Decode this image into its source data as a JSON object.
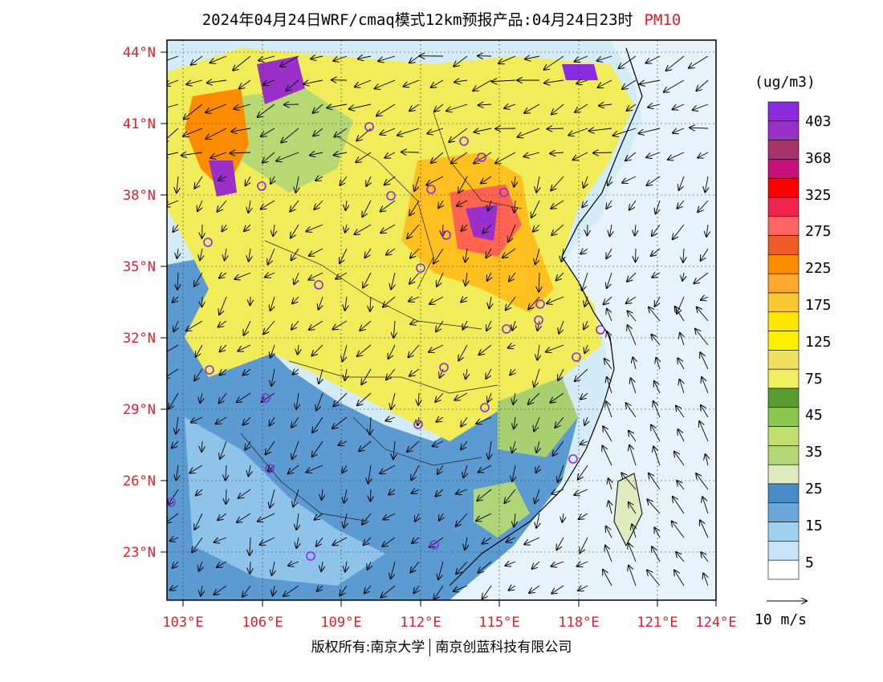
{
  "title": {
    "text": "2024年04月24日WRF/cmaq模式12km预报产品:04月24日23时",
    "pollutant": "PM10"
  },
  "lat_labels": [
    "44°N",
    "41°N",
    "38°N",
    "35°N",
    "32°N",
    "29°N",
    "26°N",
    "23°N"
  ],
  "lon_labels": [
    "103°E",
    "106°E",
    "109°E",
    "112°E",
    "115°E",
    "118°E",
    "121°E",
    "124°E"
  ],
  "colorbar": {
    "unit": "(ug/m3)",
    "labels": [
      "403",
      "368",
      "325",
      "275",
      "225",
      "175",
      "125",
      "75",
      "45",
      "35",
      "25",
      "15",
      "5"
    ],
    "colors": [
      "#8a2be2",
      "#9b30c8",
      "#a8336a",
      "#c8107a",
      "#ff0000",
      "#f0244a",
      "#ff6464",
      "#f05a28",
      "#ff8c00",
      "#ffa830",
      "#f8c832",
      "#ffe600",
      "#fff000",
      "#f0e060",
      "#f0f060",
      "#5a9e32",
      "#8cc850",
      "#c0e070",
      "#b4d878",
      "#e0ecc0",
      "#4a8cc8",
      "#6aa8dc",
      "#a0d0f0",
      "#c8e4f8",
      "#ffffff"
    ]
  },
  "wind_scale": {
    "label": "10 m/s"
  },
  "copyright": {
    "left": "版权所有:南京大学",
    "right": "南京创蓝科技有限公司"
  }
}
